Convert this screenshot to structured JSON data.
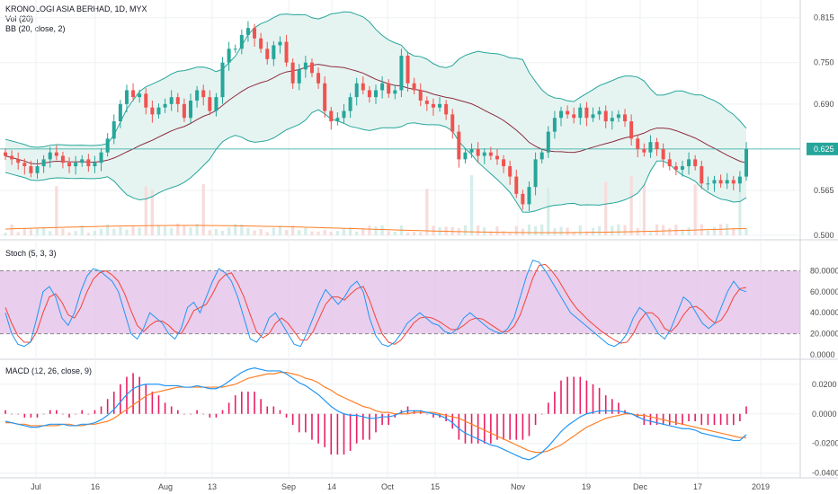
{
  "legend": {
    "title": "KRONOLOGI ASIA BERHAD, 1D, MYX",
    "vol": "Vol (20)",
    "bb": "BB (20, close, 2)",
    "stoch": "Stoch (5, 3, 3)",
    "macd": "MACD (12, 26, close, 9)"
  },
  "colors": {
    "up": "#26a69a",
    "down": "#ef5350",
    "bb_band": "#26a69a",
    "bb_basis": "#8b2c3f",
    "bb_fill": "#e6f4f1",
    "stoch_k": "#2196f3",
    "stoch_d": "#f44336",
    "stoch_band": "#e1bee7",
    "macd_line": "#2196f3",
    "signal_line": "#ff7f27",
    "hist": "#e91e63",
    "last_price": "#26a69a",
    "vol_ma": "#ff7f27"
  },
  "chart_data": [
    {
      "type": "candlestick",
      "panel": "price",
      "y_ticks": [
        "0.815",
        "0.750",
        "0.690",
        "0.625",
        "0.565",
        "0.500"
      ],
      "ylim": [
        0.5,
        0.825
      ],
      "last_price": "0.625",
      "x_ticks": [
        "Jul",
        "16",
        "Aug",
        "13",
        "Sep",
        "14",
        "Oct",
        "15",
        "Nov",
        "19",
        "Dec",
        "17",
        "2019"
      ],
      "closes": [
        0.615,
        0.61,
        0.605,
        0.6,
        0.59,
        0.6,
        0.61,
        0.62,
        0.615,
        0.605,
        0.6,
        0.605,
        0.61,
        0.6,
        0.605,
        0.62,
        0.64,
        0.665,
        0.69,
        0.71,
        0.7,
        0.705,
        0.685,
        0.675,
        0.685,
        0.69,
        0.7,
        0.69,
        0.67,
        0.695,
        0.71,
        0.7,
        0.68,
        0.7,
        0.75,
        0.77,
        0.77,
        0.79,
        0.8,
        0.785,
        0.77,
        0.755,
        0.775,
        0.78,
        0.75,
        0.72,
        0.74,
        0.75,
        0.735,
        0.72,
        0.68,
        0.665,
        0.67,
        0.68,
        0.7,
        0.72,
        0.71,
        0.7,
        0.71,
        0.72,
        0.705,
        0.71,
        0.76,
        0.72,
        0.71,
        0.695,
        0.69,
        0.685,
        0.69,
        0.675,
        0.65,
        0.61,
        0.62,
        0.625,
        0.615,
        0.62,
        0.615,
        0.61,
        0.6,
        0.585,
        0.56,
        0.545,
        0.57,
        0.61,
        0.62,
        0.65,
        0.67,
        0.68,
        0.675,
        0.67,
        0.685,
        0.67,
        0.675,
        0.68,
        0.665,
        0.67,
        0.675,
        0.665,
        0.64,
        0.625,
        0.62,
        0.635,
        0.625,
        0.61,
        0.6,
        0.595,
        0.6,
        0.61,
        0.6,
        0.575,
        0.575,
        0.58,
        0.575,
        0.58,
        0.575,
        0.585,
        0.625
      ],
      "volume_note": "volume bars with 20-day MA overlay"
    },
    {
      "type": "line",
      "panel": "stochastic",
      "y_ticks": [
        "80.0000",
        "60.0000",
        "40.0000",
        "20.0000",
        "0.0000"
      ],
      "ylim": [
        0,
        100
      ],
      "band": [
        20,
        80
      ],
      "series": [
        {
          "values": [
            40,
            20,
            10,
            8,
            12,
            35,
            60,
            65,
            55,
            35,
            28,
            40,
            60,
            75,
            82,
            80,
            75,
            70,
            60,
            40,
            20,
            15,
            25,
            40,
            35,
            30,
            20,
            15,
            25,
            45,
            50,
            40,
            55,
            70,
            82,
            78,
            70,
            55,
            35,
            15,
            12,
            20,
            35,
            40,
            30,
            20,
            10,
            8,
            20,
            35,
            50,
            62,
            55,
            48,
            55,
            65,
            70,
            60,
            35,
            18,
            10,
            8,
            12,
            20,
            30,
            35,
            40,
            35,
            30,
            28,
            22,
            20,
            25,
            35,
            40,
            35,
            30,
            25,
            22,
            20,
            25,
            35,
            55,
            75,
            90,
            88,
            80,
            70,
            60,
            50,
            40,
            35,
            30,
            25,
            20,
            15,
            10,
            8,
            12,
            20,
            35,
            45,
            40,
            30,
            20,
            15,
            25,
            40,
            55,
            50,
            40,
            30,
            25,
            30,
            45,
            60,
            70,
            62,
            60
          ]
        },
        {
          "values": [
            45,
            30,
            18,
            12,
            12,
            22,
            40,
            55,
            58,
            50,
            38,
            35,
            45,
            60,
            72,
            78,
            80,
            76,
            70,
            58,
            42,
            28,
            22,
            28,
            32,
            32,
            28,
            22,
            20,
            30,
            42,
            45,
            48,
            58,
            70,
            76,
            78,
            68,
            55,
            38,
            22,
            16,
            20,
            30,
            35,
            30,
            22,
            14,
            14,
            22,
            35,
            48,
            55,
            55,
            52,
            58,
            63,
            65,
            52,
            35,
            20,
            12,
            10,
            14,
            22,
            30,
            35,
            36,
            35,
            32,
            28,
            24,
            24,
            28,
            33,
            35,
            34,
            30,
            26,
            22,
            22,
            27,
            38,
            55,
            73,
            85,
            86,
            80,
            72,
            62,
            52,
            44,
            38,
            32,
            27,
            22,
            18,
            14,
            11,
            12,
            20,
            32,
            40,
            40,
            35,
            25,
            22,
            28,
            38,
            45,
            46,
            42,
            35,
            30,
            33,
            42,
            55,
            63,
            64
          ]
        }
      ]
    },
    {
      "type": "line",
      "panel": "macd",
      "y_ticks": [
        "0.0200",
        "0.0000",
        "-0.0200",
        "-0.0400"
      ],
      "ylim": [
        -0.042,
        0.032
      ],
      "series": [
        {
          "values": [
            -0.005,
            -0.006,
            -0.007,
            -0.008,
            -0.009,
            -0.009,
            -0.008,
            -0.007,
            -0.007,
            -0.007,
            -0.008,
            -0.008,
            -0.007,
            -0.007,
            -0.006,
            -0.004,
            -0.001,
            0.003,
            0.008,
            0.013,
            0.017,
            0.019,
            0.02,
            0.02,
            0.02,
            0.019,
            0.019,
            0.019,
            0.018,
            0.018,
            0.019,
            0.018,
            0.017,
            0.017,
            0.019,
            0.022,
            0.025,
            0.028,
            0.03,
            0.031,
            0.03,
            0.029,
            0.029,
            0.029,
            0.027,
            0.024,
            0.021,
            0.019,
            0.016,
            0.013,
            0.009,
            0.005,
            0.002,
            0.0,
            -0.001,
            -0.001,
            -0.002,
            -0.003,
            -0.003,
            -0.002,
            -0.002,
            -0.001,
            0.001,
            0.002,
            0.002,
            0.002,
            0.001,
            0.0,
            -0.001,
            -0.003,
            -0.006,
            -0.01,
            -0.013,
            -0.015,
            -0.017,
            -0.019,
            -0.021,
            -0.022,
            -0.024,
            -0.026,
            -0.028,
            -0.03,
            -0.031,
            -0.029,
            -0.026,
            -0.022,
            -0.017,
            -0.012,
            -0.008,
            -0.005,
            -0.002,
            0.0,
            0.001,
            0.002,
            0.002,
            0.002,
            0.002,
            0.001,
            0.0,
            -0.002,
            -0.004,
            -0.005,
            -0.006,
            -0.007,
            -0.008,
            -0.009,
            -0.01,
            -0.01,
            -0.011,
            -0.013,
            -0.014,
            -0.015,
            -0.016,
            -0.017,
            -0.018,
            -0.018,
            -0.014
          ]
        },
        {
          "values": [
            -0.006,
            -0.006,
            -0.007,
            -0.007,
            -0.008,
            -0.008,
            -0.008,
            -0.008,
            -0.008,
            -0.007,
            -0.007,
            -0.008,
            -0.008,
            -0.007,
            -0.007,
            -0.006,
            -0.005,
            -0.003,
            0.0,
            0.003,
            0.006,
            0.009,
            0.012,
            0.014,
            0.015,
            0.016,
            0.017,
            0.018,
            0.018,
            0.018,
            0.018,
            0.018,
            0.018,
            0.018,
            0.018,
            0.019,
            0.02,
            0.022,
            0.024,
            0.025,
            0.026,
            0.027,
            0.027,
            0.028,
            0.028,
            0.027,
            0.026,
            0.024,
            0.023,
            0.021,
            0.018,
            0.016,
            0.013,
            0.011,
            0.009,
            0.007,
            0.005,
            0.004,
            0.002,
            0.001,
            0.001,
            0.0,
            0.0,
            0.0,
            0.001,
            0.001,
            0.001,
            0.001,
            0.0,
            -0.001,
            -0.002,
            -0.003,
            -0.005,
            -0.007,
            -0.009,
            -0.011,
            -0.013,
            -0.015,
            -0.017,
            -0.019,
            -0.021,
            -0.023,
            -0.025,
            -0.026,
            -0.026,
            -0.025,
            -0.023,
            -0.021,
            -0.018,
            -0.015,
            -0.012,
            -0.009,
            -0.007,
            -0.005,
            -0.003,
            -0.002,
            -0.001,
            0.0,
            0.0,
            -0.001,
            -0.001,
            -0.002,
            -0.003,
            -0.004,
            -0.005,
            -0.006,
            -0.007,
            -0.008,
            -0.009,
            -0.01,
            -0.011,
            -0.012,
            -0.013,
            -0.014,
            -0.015,
            -0.016,
            -0.016
          ]
        }
      ]
    }
  ]
}
